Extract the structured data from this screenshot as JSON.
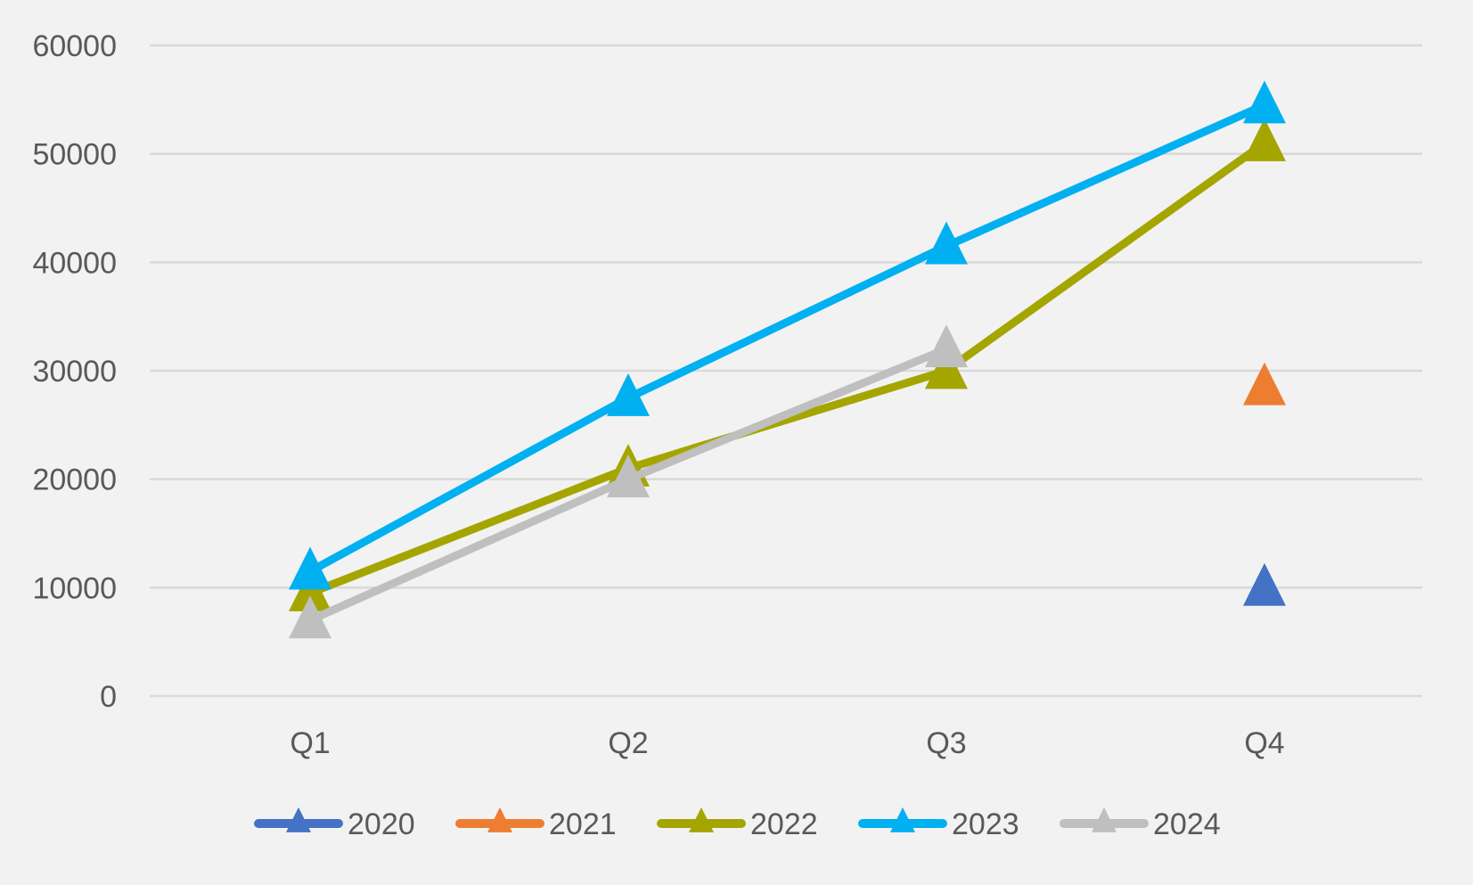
{
  "chart_data": {
    "type": "line",
    "title": "",
    "xlabel": "",
    "ylabel": "",
    "categories": [
      "Q1",
      "Q2",
      "Q3",
      "Q4"
    ],
    "ylim": [
      0,
      60000
    ],
    "y_ticks": [
      0,
      10000,
      20000,
      30000,
      40000,
      50000,
      60000
    ],
    "y_tick_labels": [
      "0",
      "10000",
      "20000",
      "30000",
      "40000",
      "50000",
      "60000"
    ],
    "grid": true,
    "legend_position": "bottom",
    "marker": "triangle",
    "series": [
      {
        "name": "2020",
        "color": "#4472C4",
        "values": [
          null,
          null,
          null,
          10000
        ]
      },
      {
        "name": "2021",
        "color": "#ED7D31",
        "values": [
          null,
          null,
          null,
          28500
        ]
      },
      {
        "name": "2022",
        "color": "#A5A500",
        "values": [
          9500,
          21000,
          30000,
          51000
        ]
      },
      {
        "name": "2023",
        "color": "#00B0F0",
        "values": [
          11500,
          27500,
          41500,
          54500
        ]
      },
      {
        "name": "2024",
        "color": "#BFBFBF",
        "values": [
          7000,
          20000,
          32000,
          null
        ]
      }
    ]
  }
}
